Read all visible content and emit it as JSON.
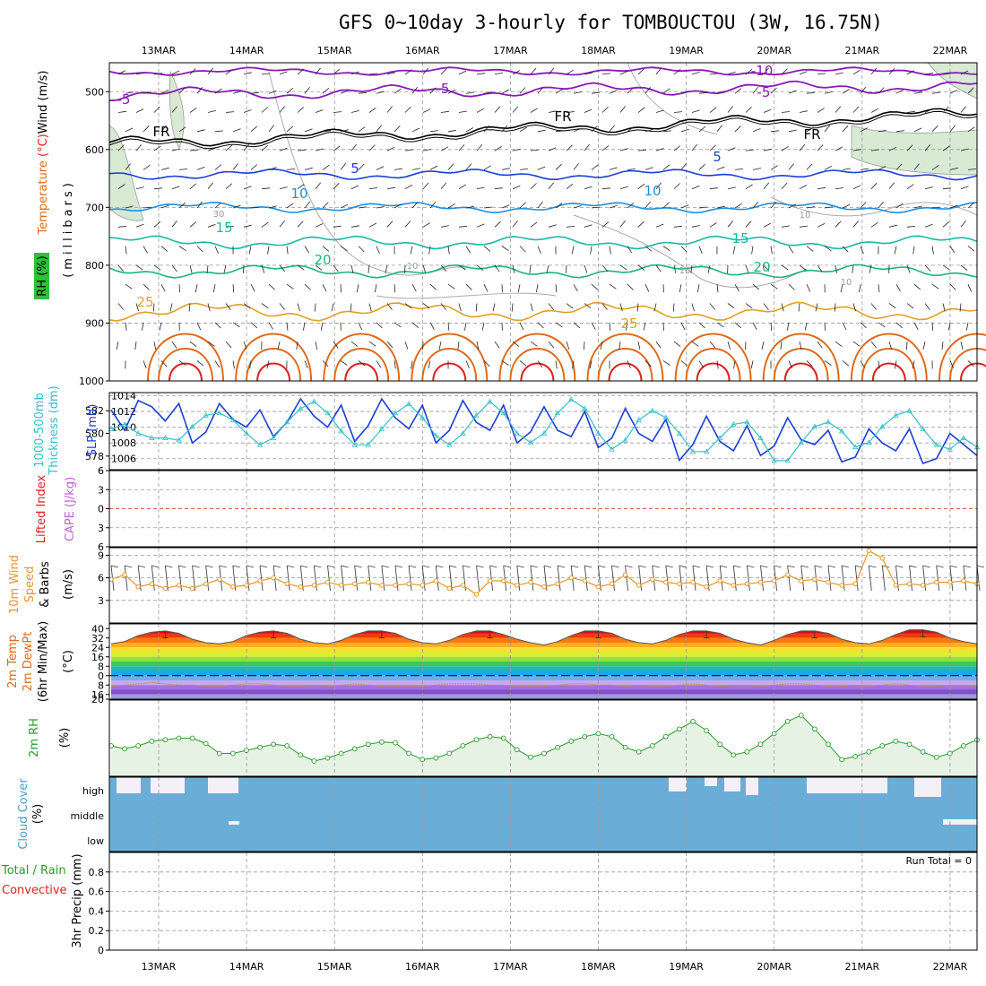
{
  "title": "GFS 0~10day 3-hourly for TOMBOUCTOU (3W, 16.75N)",
  "colors": {
    "purple": "#8a1ab8",
    "black": "#000000",
    "blue": "#1b3fd6",
    "cyan": "#1f8fdc",
    "teal": "#19b9a6",
    "green_t": "#1bb57e",
    "orange": "#e0a024",
    "dark_orange": "#e06a1a",
    "red": "#e02020",
    "grey": "#aaaaaa",
    "cloud": "#6aaed8",
    "rh_fill": "#e6f2e4",
    "rh_line": "#2a9a2a",
    "wind10": "#e8962a",
    "slp": "#1b3fd6",
    "thick": "#33c0c8"
  },
  "chart_data": {
    "type": "meteogram",
    "dates_top": [
      "13MAR",
      "14MAR",
      "15MAR",
      "16MAR",
      "17MAR",
      "18MAR",
      "19MAR",
      "20MAR",
      "21MAR",
      "22MAR"
    ],
    "dates_bottom": [
      "13MAR",
      "14MAR",
      "15MAR",
      "16MAR",
      "17MAR",
      "18MAR",
      "19MAR",
      "20MAR",
      "21MAR",
      "22MAR"
    ],
    "panels": [
      {
        "id": "upper_air",
        "ylabel_parts": [
          {
            "text": "Temperature",
            "color": "#e06a1a"
          },
          {
            "text": " (°C)",
            "color": "#e02020"
          },
          {
            "text": "Wind (m/s)",
            "color": "#000000"
          }
        ],
        "ylabel2": "(millibars)",
        "rh_label": "RH (%)",
        "ylim": [
          450,
          1000
        ],
        "yticks": [
          "500",
          "600",
          "700",
          "800",
          "900",
          "1000"
        ],
        "contour_labels": [
          {
            "text": "-10",
            "color": "#8a1ab8"
          },
          {
            "text": "-5",
            "color": "#8a1ab8"
          },
          {
            "text": "-5",
            "color": "#8a1ab8"
          },
          {
            "text": "-5",
            "color": "#8a1ab8"
          },
          {
            "text": "FR",
            "color": "#000000"
          },
          {
            "text": "FR",
            "color": "#000000"
          },
          {
            "text": "FR",
            "color": "#000000"
          },
          {
            "text": "5",
            "color": "#1b3fd6"
          },
          {
            "text": "5",
            "color": "#1b3fd6"
          },
          {
            "text": "10",
            "color": "#1f8fdc"
          },
          {
            "text": "10",
            "color": "#1f8fdc"
          },
          {
            "text": "15",
            "color": "#19b9a6"
          },
          {
            "text": "15",
            "color": "#19b9a6"
          },
          {
            "text": "20",
            "color": "#1bb57e"
          },
          {
            "text": "20",
            "color": "#1bb57e"
          },
          {
            "text": "25",
            "color": "#e0a024"
          },
          {
            "text": "25",
            "color": "#e0a024"
          },
          {
            "text": "30",
            "color": "#999999"
          },
          {
            "text": "10",
            "color": "#999999"
          },
          {
            "text": "10",
            "color": "#999999"
          },
          {
            "text": "10",
            "color": "#999999"
          },
          {
            "text": "10",
            "color": "#999999"
          }
        ]
      },
      {
        "id": "thickness_slp",
        "ylabel_left": "1000-500mb\nThickness (dm)",
        "ylabel_right": "SLP (mb)",
        "yticks_left": [
          "578",
          "580",
          "582"
        ],
        "yticks_right": [
          "1006",
          "1008",
          "1010",
          "1012",
          "1014"
        ],
        "slp": [
          1012.2,
          1009.6,
          1013.4,
          1012.6,
          1010.8,
          1013.0,
          1008.0,
          1009.4,
          1013.0,
          1011.0,
          1010.0,
          1012.2,
          1008.8,
          1010.6,
          1013.6,
          1011.4,
          1010.0,
          1012.8,
          1008.2,
          1010.2,
          1013.6,
          1011.2,
          1009.8,
          1012.8,
          1008.0,
          1009.6,
          1013.4,
          1010.6,
          1009.6,
          1012.8,
          1008.0,
          1009.4,
          1012.6,
          1009.6,
          1008.8,
          1012.0,
          1007.4,
          1008.6,
          1012.4,
          1009.2,
          1008.2,
          1011.0,
          1005.8,
          1007.8,
          1011.4,
          1008.2,
          1007.0,
          1010.2,
          1006.4,
          1007.6,
          1011.2,
          1008.4,
          1007.8,
          1009.6,
          1005.6,
          1006.2,
          1009.8,
          1008.0,
          1007.0,
          1009.8,
          1005.4,
          1006.0,
          1009.2,
          1007.8,
          1006.4
        ],
        "thickness": [
          580.4,
          580.8,
          580.0,
          579.6,
          579.6,
          579.4,
          580.6,
          581.6,
          581.8,
          581.2,
          580.0,
          579.0,
          579.6,
          581.0,
          582.2,
          582.8,
          581.8,
          580.2,
          579.0,
          579.0,
          580.4,
          581.8,
          582.6,
          581.4,
          579.8,
          579.0,
          580.0,
          581.6,
          582.8,
          581.8,
          580.0,
          579.2,
          580.0,
          581.8,
          583.0,
          582.2,
          580.0,
          578.6,
          579.4,
          581.2,
          582.0,
          581.4,
          580.0,
          578.4,
          578.4,
          579.6,
          580.8,
          581.0,
          579.6,
          577.6,
          577.6,
          579.2,
          580.6,
          581.0,
          580.2,
          578.8,
          579.2,
          580.6,
          581.6,
          582.0,
          580.4,
          579.0,
          578.6,
          579.6,
          578.8
        ]
      },
      {
        "id": "li_cape",
        "ylabel_left": "Lifted Index",
        "ylabel_right": "CAPE (J/kg)",
        "yticks": [
          "-6",
          "-3",
          "0",
          "3",
          "6"
        ]
      },
      {
        "id": "wind10",
        "ylabel_parts": [
          {
            "text": "10m Wind",
            "color": "#e8962a"
          },
          {
            "text": "Speed",
            "color": "#e8962a"
          },
          {
            "text": "& Barbs",
            "color": "#000000"
          }
        ],
        "unit": "(m/s)",
        "yticks": [
          "3",
          "6",
          "9"
        ],
        "ylim": [
          0,
          10
        ],
        "speed": [
          5.8,
          6.4,
          4.8,
          5.2,
          4.6,
          5.0,
          4.6,
          5.2,
          5.8,
          4.8,
          5.0,
          5.6,
          6.0,
          5.2,
          4.8,
          5.0,
          5.4,
          5.0,
          5.2,
          5.4,
          5.0,
          5.0,
          5.2,
          5.0,
          5.6,
          4.6,
          5.0,
          3.8,
          5.6,
          5.6,
          5.0,
          5.4,
          4.8,
          5.2,
          6.0,
          5.6,
          4.8,
          5.2,
          6.4,
          5.0,
          5.8,
          5.4,
          5.2,
          5.4,
          4.8,
          5.6,
          5.0,
          5.2,
          5.4,
          5.6,
          6.4,
          5.6,
          5.8,
          5.4,
          5.0,
          5.2,
          9.6,
          8.6,
          5.0,
          5.2,
          5.0,
          5.4,
          5.4,
          5.6,
          5.2
        ]
      },
      {
        "id": "temp2m",
        "ylabel_parts": [
          {
            "text": "2m Temp",
            "color": "#e06a1a"
          },
          {
            "text": "2m DewPt",
            "color": "#e06a1a"
          },
          {
            "text": "(6hr Min/Max)",
            "color": "#000000"
          }
        ],
        "unit": "(°C)",
        "yticks": [
          "40",
          "32",
          "24",
          "16",
          "8",
          "0",
          "-8",
          "-16",
          "-20"
        ],
        "temp": [
          27,
          29,
          34,
          37,
          38,
          36,
          31,
          28,
          27,
          29,
          34,
          37,
          38,
          36,
          31,
          28,
          27,
          30,
          35,
          38,
          38,
          36,
          31,
          28,
          27,
          30,
          35,
          38,
          38,
          35,
          31,
          28,
          26,
          29,
          34,
          38,
          38,
          36,
          31,
          28,
          27,
          30,
          35,
          38,
          38,
          36,
          31,
          28,
          26,
          30,
          35,
          38,
          38,
          36,
          31,
          28,
          27,
          30,
          35,
          39,
          39,
          37,
          32,
          29,
          27
        ],
        "dewpt": [
          -9,
          -8,
          -7,
          -6,
          -7,
          -8,
          -8,
          -9,
          -9,
          -8,
          -7,
          -7,
          -8,
          -9,
          -9,
          -10,
          -9,
          -8,
          -7,
          -8,
          -9,
          -9,
          -9,
          -9,
          -8,
          -7,
          -7,
          -7,
          -8,
          -8,
          -9,
          -9,
          -9,
          -8,
          -7,
          -7,
          -8,
          -8,
          -9,
          -10,
          -9,
          -9,
          -8,
          -7,
          -8,
          -9,
          -10,
          -10,
          -9,
          -8,
          -7,
          -7,
          -8,
          -9,
          -9,
          -10,
          -9,
          -8,
          -7,
          -8,
          -9,
          -9,
          -10,
          -10,
          -9
        ]
      },
      {
        "id": "rh2m",
        "ylabel": "2m RH",
        "unit": "(%)",
        "ylim": [
          0,
          100
        ],
        "rh": [
          40,
          36,
          40,
          46,
          48,
          50,
          50,
          43,
          30,
          30,
          34,
          38,
          42,
          40,
          28,
          20,
          24,
          30,
          36,
          42,
          45,
          44,
          30,
          22,
          24,
          30,
          40,
          48,
          52,
          50,
          35,
          25,
          30,
          38,
          46,
          52,
          56,
          52,
          38,
          32,
          40,
          52,
          62,
          72,
          60,
          42,
          28,
          32,
          42,
          56,
          72,
          80,
          62,
          42,
          22,
          26,
          32,
          40,
          46,
          42,
          32,
          25,
          30,
          40,
          48
        ]
      },
      {
        "id": "cloud",
        "ylabel": "Cloud Cover",
        "unit": "(%)",
        "levels": [
          "high",
          "middle",
          "low"
        ]
      },
      {
        "id": "precip",
        "ylabel_parts": [
          {
            "text": "Total / Rain",
            "color": "#2a9a2a"
          },
          {
            "text": "Convective",
            "color": "#e02020"
          }
        ],
        "ylabel2": "3hr Precip (mm)",
        "ylim": [
          0,
          1
        ],
        "yticks": [
          "0",
          "0.2",
          "0.4",
          "0.6",
          "0.8"
        ],
        "run_total": "Run Total = 0"
      }
    ]
  }
}
